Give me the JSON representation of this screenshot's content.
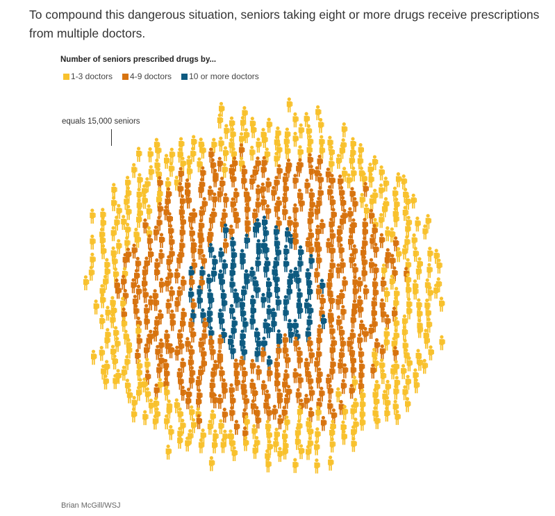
{
  "intro_text": "To compound this dangerous situation, seniors taking eight or more drugs receive prescriptions from multiple doctors.",
  "credit": "Brian McGill/WSJ",
  "chart_data": {
    "type": "pictogram",
    "title": "Number of seniors prescribed drugs by...",
    "unit_note": "equals 15,000 seniors",
    "seniors_per_icon": 15000,
    "series": [
      {
        "name": "1-3 doctors",
        "color": "#f8c12d",
        "icons": 360
      },
      {
        "name": "4-9 doctors",
        "color": "#d7730f",
        "icons": 420
      },
      {
        "name": "10 or more doctors",
        "color": "#0d5a80",
        "icons": 120
      }
    ],
    "legend_position": "top-left"
  }
}
